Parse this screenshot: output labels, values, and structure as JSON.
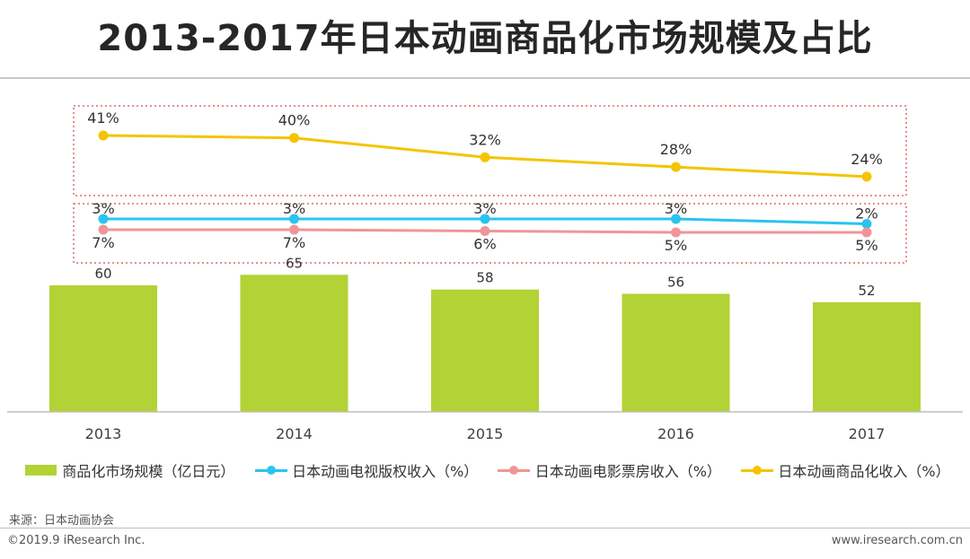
{
  "colors": {
    "bar": "#b2d235",
    "tv": "#29c4ee",
    "movie": "#f09597",
    "merch": "#f5c400",
    "box": "#e06a6a"
  },
  "chart_data": {
    "type": "bar",
    "title": "2013-2017年日本动画商品化市场规模及占比",
    "categories": [
      "2013",
      "2014",
      "2015",
      "2016",
      "2017"
    ],
    "bar_series": {
      "name": "商品化市场规模（亿日元）",
      "values": [
        60,
        65,
        58,
        56,
        52
      ],
      "labels": [
        "60",
        "65",
        "58",
        "56",
        "52"
      ]
    },
    "line_series": [
      {
        "name": "日本动画电视版权收入（%）",
        "values": [
          3,
          3,
          3,
          3,
          2
        ],
        "labels": [
          "3%",
          "3%",
          "3%",
          "3%",
          "2%"
        ]
      },
      {
        "name": "日本动画电影票房收入（%）",
        "values": [
          7,
          7,
          6,
          5,
          5
        ],
        "labels": [
          "7%",
          "7%",
          "6%",
          "5%",
          "5%"
        ]
      },
      {
        "name": "日本动画商品化收入（%）",
        "values": [
          41,
          40,
          32,
          28,
          24
        ],
        "labels": [
          "41%",
          "40%",
          "32%",
          "28%",
          "24%"
        ]
      }
    ],
    "xlabel": "",
    "ylabel": ""
  },
  "footer": {
    "source": "来源：日本动画协会",
    "copyright": "©2019.9 iResearch Inc.",
    "website": "www.iresearch.com.cn"
  }
}
